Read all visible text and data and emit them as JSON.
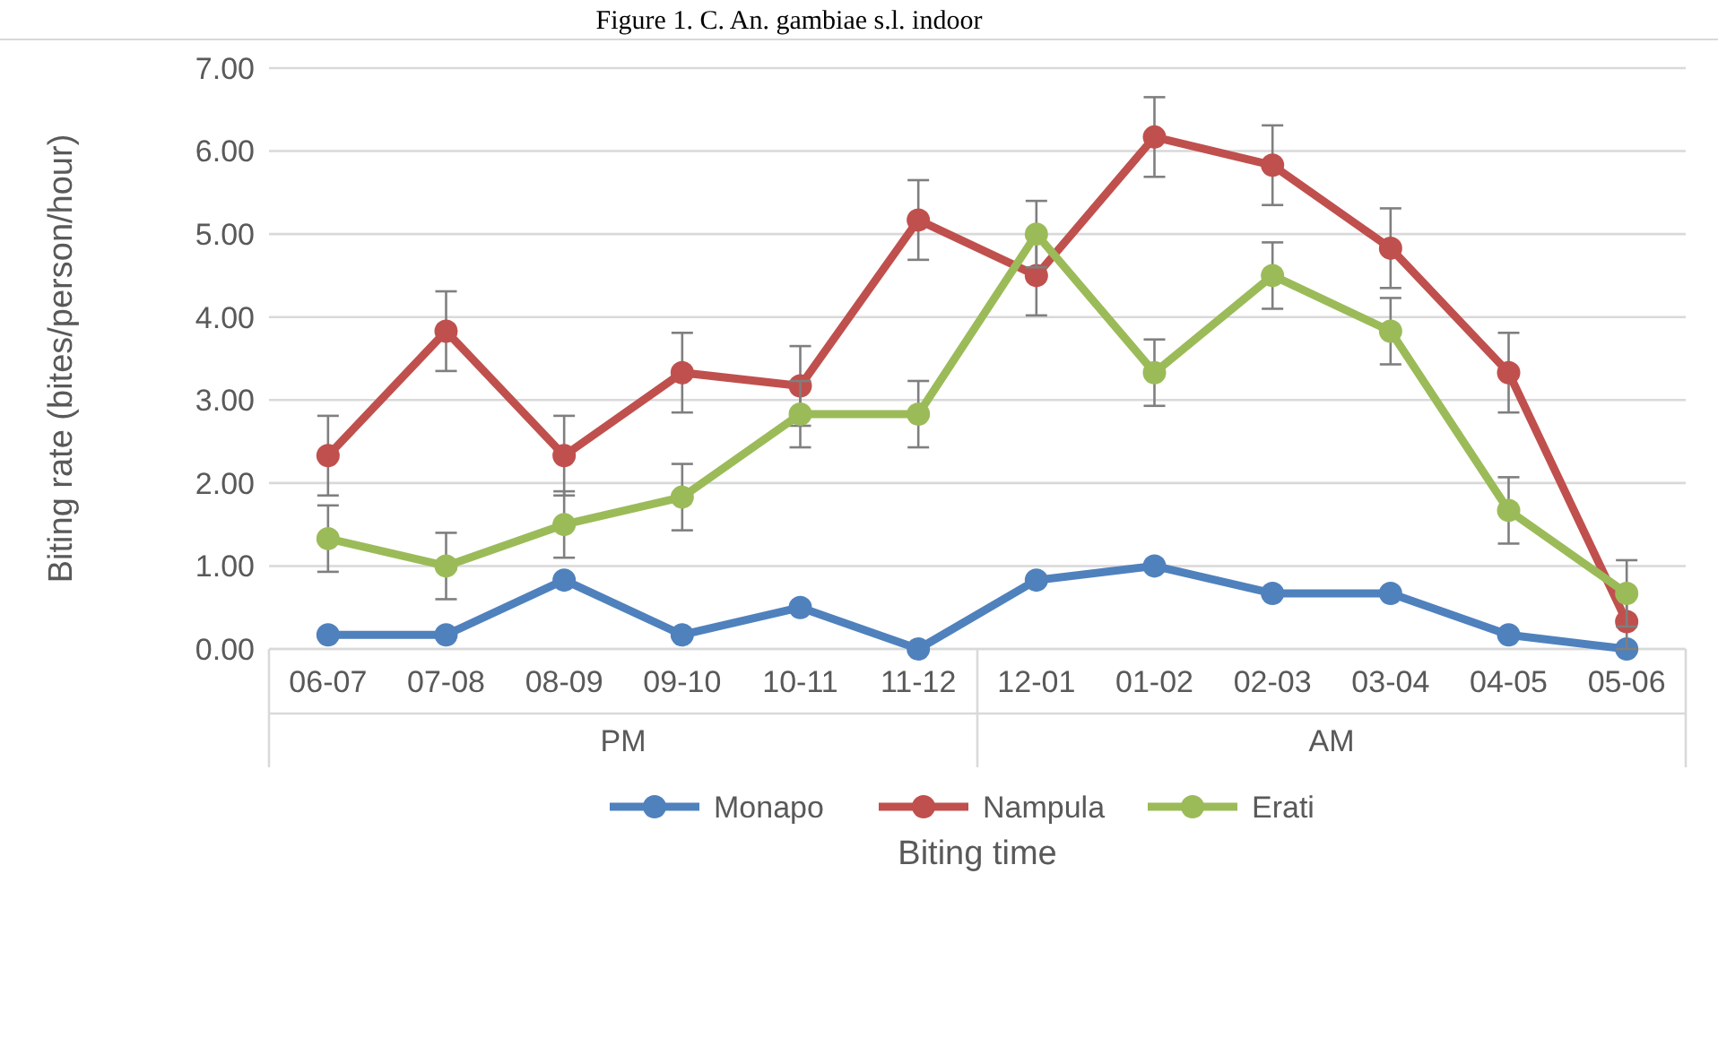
{
  "chart_data": {
    "type": "line",
    "title": "Figure 1. C. An. gambiae s.l. indoor",
    "xlabel": "Biting time",
    "ylabel": "Biting rate (bites/person/hour)",
    "categories": [
      "06-07",
      "07-08",
      "08-09",
      "09-10",
      "10-11",
      "11-12",
      "12-01",
      "01-02",
      "02-03",
      "03-04",
      "04-05",
      "05-06"
    ],
    "annotations": [
      "PM",
      "AM"
    ],
    "series": [
      {
        "name": "Monapo",
        "color": "#4f81bd",
        "values": [
          0.17,
          0.17,
          0.83,
          0.17,
          0.5,
          0,
          0.83,
          1.0,
          0.67,
          0.67,
          0.17,
          0
        ]
      },
      {
        "name": "Nampula",
        "color": "#c0504d",
        "values": [
          2.33,
          3.83,
          2.33,
          3.33,
          3.17,
          5.17,
          4.5,
          6.17,
          5.83,
          4.83,
          3.33,
          0.33
        ],
        "errors": [
          0.48,
          0.48,
          0.48,
          0.48,
          0.48,
          0.48,
          0.48,
          0.48,
          0.48,
          0.48,
          0.48,
          0.33
        ]
      },
      {
        "name": "Erati",
        "color": "#9bbb59",
        "values": [
          1.33,
          1.0,
          1.5,
          1.83,
          2.83,
          2.83,
          5.0,
          3.33,
          4.5,
          3.83,
          1.67,
          0.67
        ],
        "errors": [
          0.4,
          0.4,
          0.4,
          0.4,
          0.4,
          0.4,
          0.4,
          0.4,
          0.4,
          0.4,
          0.4,
          0.4
        ]
      }
    ],
    "ylim": [
      0,
      7
    ],
    "yticks": [
      {
        "value": 0,
        "label": "0.00"
      },
      {
        "value": 1,
        "label": "1.00"
      },
      {
        "value": 2,
        "label": "2.00"
      },
      {
        "value": 3,
        "label": "3.00"
      },
      {
        "value": 4,
        "label": "4.00"
      },
      {
        "value": 5,
        "label": "5.00"
      },
      {
        "value": 6,
        "label": "6.00"
      },
      {
        "value": 7,
        "label": "7.00"
      }
    ],
    "grid": "y",
    "legend": "bottom",
    "marker": "circle",
    "line_style": "solid"
  }
}
